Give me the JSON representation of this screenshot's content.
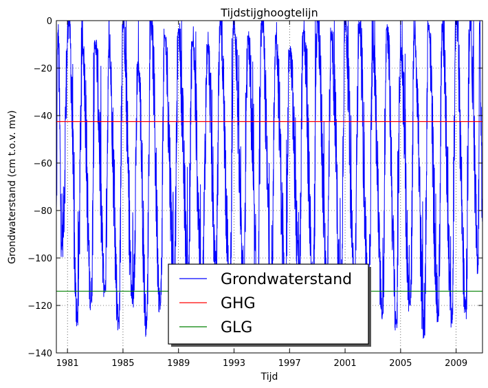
{
  "chart_data": {
    "type": "line",
    "title": "Tijdstijghoogtelijn",
    "xlabel": "Tijd",
    "ylabel": "Grondwaterstand (cm t.o.v. mv)",
    "xlim": [
      1980.2,
      2010.9
    ],
    "ylim": [
      -140,
      0
    ],
    "grid": true,
    "x_ticks": [
      "1981",
      "1985",
      "1989",
      "1993",
      "1997",
      "2001",
      "2005",
      "2009"
    ],
    "y_ticks": [
      "0",
      "−20",
      "−40",
      "−60",
      "−80",
      "−100",
      "−120",
      "−140"
    ],
    "legend_position": "lower-center",
    "series": [
      {
        "name": "Grondwaterstand",
        "color": "#0000ff",
        "kind": "dense-seasonal-timeseries",
        "annual_peaks": [
          [
            1980.3,
            -5
          ],
          [
            1981.1,
            0
          ],
          [
            1982.1,
            -12
          ],
          [
            1983.0,
            -10
          ],
          [
            1984.0,
            -15
          ],
          [
            1985.0,
            0
          ],
          [
            1986.1,
            -20
          ],
          [
            1987.0,
            0
          ],
          [
            1988.0,
            -7
          ],
          [
            1989.0,
            -5
          ],
          [
            1990.0,
            -9
          ],
          [
            1991.1,
            -12
          ],
          [
            1992.0,
            0
          ],
          [
            1993.0,
            0
          ],
          [
            1994.0,
            -8
          ],
          [
            1995.0,
            0
          ],
          [
            1996.0,
            -7
          ],
          [
            1997.0,
            -14
          ],
          [
            1998.0,
            -5
          ],
          [
            1999.0,
            0
          ],
          [
            2000.0,
            -6
          ],
          [
            2001.0,
            0
          ],
          [
            2002.0,
            -4
          ],
          [
            2003.0,
            -14
          ],
          [
            2004.0,
            -3
          ],
          [
            2005.0,
            -14
          ],
          [
            2006.0,
            -6
          ],
          [
            2007.0,
            -2
          ],
          [
            2008.0,
            -4
          ],
          [
            2009.0,
            0
          ],
          [
            2010.0,
            0
          ],
          [
            2010.7,
            0
          ]
        ],
        "annual_troughs": [
          [
            1980.6,
            -95
          ],
          [
            1981.7,
            -126
          ],
          [
            1982.7,
            -118
          ],
          [
            1983.7,
            -113
          ],
          [
            1984.7,
            -127
          ],
          [
            1985.7,
            -118
          ],
          [
            1986.7,
            -129
          ],
          [
            1987.7,
            -120
          ],
          [
            1988.7,
            -106
          ],
          [
            1989.7,
            -108
          ],
          [
            1990.7,
            -112
          ],
          [
            1991.7,
            -104
          ],
          [
            1992.7,
            -110
          ],
          [
            1993.7,
            -112
          ],
          [
            1994.7,
            -118
          ],
          [
            1995.7,
            -112
          ],
          [
            1996.7,
            -113
          ],
          [
            1997.7,
            -104
          ],
          [
            1998.7,
            -110
          ],
          [
            1999.7,
            -108
          ],
          [
            2000.7,
            -112
          ],
          [
            2001.7,
            -110
          ],
          [
            2002.7,
            -116
          ],
          [
            2003.7,
            -124
          ],
          [
            2004.7,
            -127
          ],
          [
            2005.7,
            -120
          ],
          [
            2006.7,
            -132
          ],
          [
            2007.7,
            -126
          ],
          [
            2008.7,
            -126
          ],
          [
            2009.7,
            -122
          ],
          [
            2010.6,
            -103
          ]
        ]
      },
      {
        "name": "GHG",
        "color": "#ff0000",
        "y": -42.5
      },
      {
        "name": "GLG",
        "color": "#008000",
        "y": -114
      }
    ]
  }
}
